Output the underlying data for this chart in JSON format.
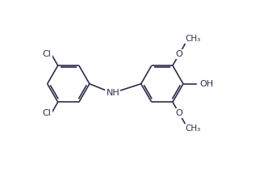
{
  "bg_color": "#ffffff",
  "bond_color": "#2d2d4e",
  "text_color": "#2d2d4e",
  "bond_width": 1.2,
  "dbo": 0.008,
  "figsize": [
    3.32,
    2.19
  ],
  "dpi": 100,
  "xlim": [
    0.0,
    1.0
  ],
  "ylim": [
    0.0,
    0.75
  ]
}
